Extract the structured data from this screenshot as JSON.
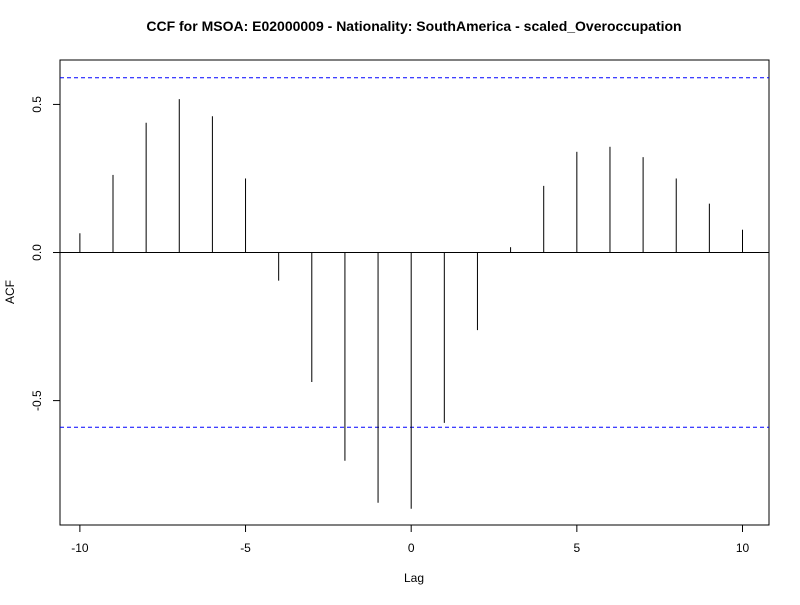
{
  "chart_data": {
    "type": "bar",
    "title": "CCF for MSOA: E02000009 - Nationality: SouthAmerica - scaled_Overoccupation",
    "xlabel": "Lag",
    "ylabel": "ACF",
    "xlim": [
      -10.6,
      10.8
    ],
    "ylim": [
      -0.92,
      0.65
    ],
    "x_ticks": [
      -10,
      -5,
      0,
      5,
      10
    ],
    "x_tick_labels": [
      "-10",
      "-5",
      "0",
      "5",
      "10"
    ],
    "y_ticks": [
      -0.5,
      0.0,
      0.5
    ],
    "y_tick_labels": [
      "-0.5",
      "0.0",
      "0.5"
    ],
    "lags": [
      -10,
      -9,
      -8,
      -7,
      -6,
      -5,
      -4,
      -3,
      -2,
      -1,
      0,
      1,
      2,
      3,
      4,
      5,
      6,
      7,
      8,
      9,
      10
    ],
    "values": [
      0.065,
      0.262,
      0.438,
      0.518,
      0.46,
      0.25,
      -0.095,
      -0.437,
      -0.703,
      -0.845,
      -0.865,
      -0.575,
      -0.262,
      0.018,
      0.225,
      0.34,
      0.357,
      0.322,
      0.25,
      0.165,
      0.077
    ],
    "confidence_limits": [
      0.59,
      -0.59
    ],
    "confidence_color": "#0000ff",
    "bar_color": "#000000",
    "grid": false
  }
}
